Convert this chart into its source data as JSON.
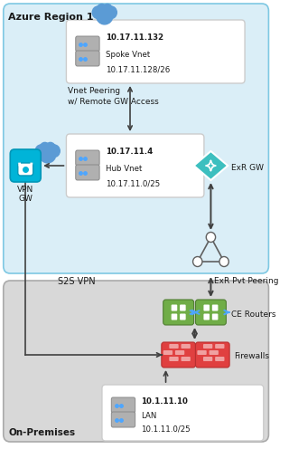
{
  "title": "Azure Region 1",
  "footer": "On-Premises",
  "azure_bg": "#daeef7",
  "onprem_bg": "#d8d8d8",
  "white": "#ffffff",
  "spoke": {
    "ip": "10.17.11.132",
    "label": "Spoke Vnet",
    "subnet": "10.17.11.128/26"
  },
  "hub": {
    "ip": "10.17.11.4",
    "label": "Hub Vnet",
    "subnet": "10.17.11.0/25"
  },
  "lan": {
    "ip": "10.1.11.10",
    "label": "LAN",
    "subnet": "10.1.11.0/25"
  },
  "exr_gw_label": "ExR GW",
  "vpn_gw_label": "VPN\nGW",
  "ce_label": "CE Routers",
  "fw_label": "Firewalls",
  "peering_text": "Vnet Peering\nw/ Remote GW Access",
  "s2s_text": "S2S VPN",
  "exr_pvt_text": "ExR Pvt Peering",
  "colors": {
    "azure_border": "#7ec8e3",
    "onprem_border": "#aaaaaa",
    "box_border": "#cccccc",
    "server_body": "#b0b0b0",
    "server_dark": "#8a8a8a",
    "blue_dot": "#4da6ff",
    "cloud_blue": "#5b9bd5",
    "vpn_cyan": "#00b4d8",
    "vpn_border": "#0096b7",
    "teal": "#3dbfbf",
    "teal_dark": "#2a9a9a",
    "green": "#70ad47",
    "green_dark": "#507e33",
    "red": "#e04040",
    "red_dark": "#b83030",
    "red_brick": "#f0a0a0",
    "arrow": "#404040",
    "text": "#1a1a1a",
    "white": "#ffffff",
    "blue_arrow": "#4da6ff"
  }
}
